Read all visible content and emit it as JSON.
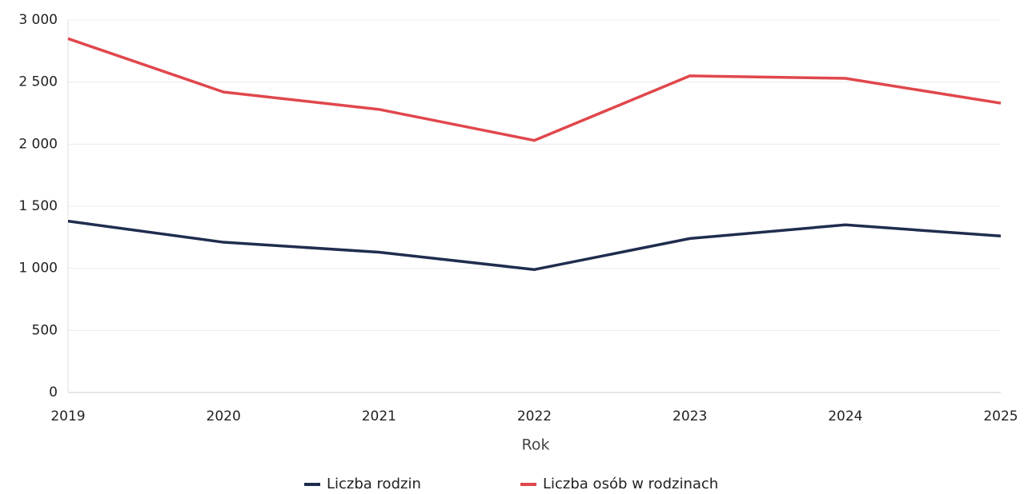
{
  "chart_data": {
    "type": "line",
    "categories": [
      "2019",
      "2020",
      "2021",
      "2022",
      "2023",
      "2024",
      "2025"
    ],
    "series": [
      {
        "name": "Liczba rodzin",
        "color": "#1f2d4e",
        "values": [
          1380,
          1210,
          1130,
          990,
          1240,
          1350,
          1260
        ]
      },
      {
        "name": "Liczba osób w rodzinach",
        "color": "#e0474c",
        "values": [
          2850,
          2420,
          2280,
          2030,
          2550,
          2530,
          2330
        ]
      }
    ],
    "x_label": "Rok",
    "ylim": [
      0,
      3000
    ],
    "yticks": [
      0,
      500,
      {
        "value": 1000,
        "label": "1 000"
      },
      {
        "value": 1500,
        "label": "1 500"
      },
      {
        "value": 2000,
        "label": "2 000"
      },
      {
        "value": 2500,
        "label": "2 500"
      },
      {
        "value": 3000,
        "label": "3 000"
      }
    ],
    "grid": true,
    "legend": "bottom"
  }
}
